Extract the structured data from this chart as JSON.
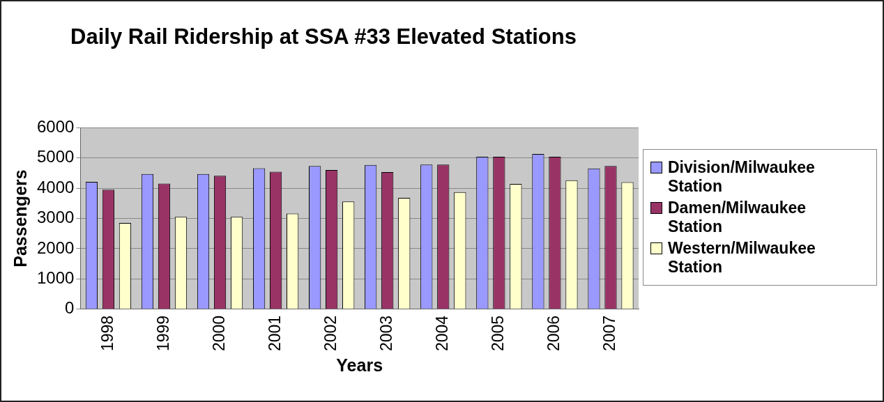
{
  "chart_data": {
    "type": "bar",
    "title": "Daily Rail Ridership at SSA #33 Elevated Stations",
    "xlabel": "Years",
    "ylabel": "Passengers",
    "categories": [
      "1998",
      "1999",
      "2000",
      "2001",
      "2002",
      "2003",
      "2004",
      "2005",
      "2006",
      "2007"
    ],
    "series": [
      {
        "name": "Division/Milwaukee Station",
        "color": "#9999ff",
        "values": [
          4210,
          4470,
          4470,
          4660,
          4730,
          4770,
          4780,
          5040,
          5130,
          4650
        ]
      },
      {
        "name": "Damen/Milwaukee Station",
        "color": "#993366",
        "values": [
          3950,
          4150,
          4410,
          4540,
          4600,
          4530,
          4780,
          5040,
          5040,
          4730
        ]
      },
      {
        "name": "Western/Milwaukee Station",
        "color": "#ffffcc",
        "values": [
          2850,
          3050,
          3050,
          3160,
          3560,
          3680,
          3870,
          4140,
          4260,
          4200
        ]
      }
    ],
    "ylim": [
      0,
      6000
    ],
    "yticks": [
      0,
      1000,
      2000,
      3000,
      4000,
      5000,
      6000
    ],
    "grid": "y",
    "legend": "right"
  }
}
